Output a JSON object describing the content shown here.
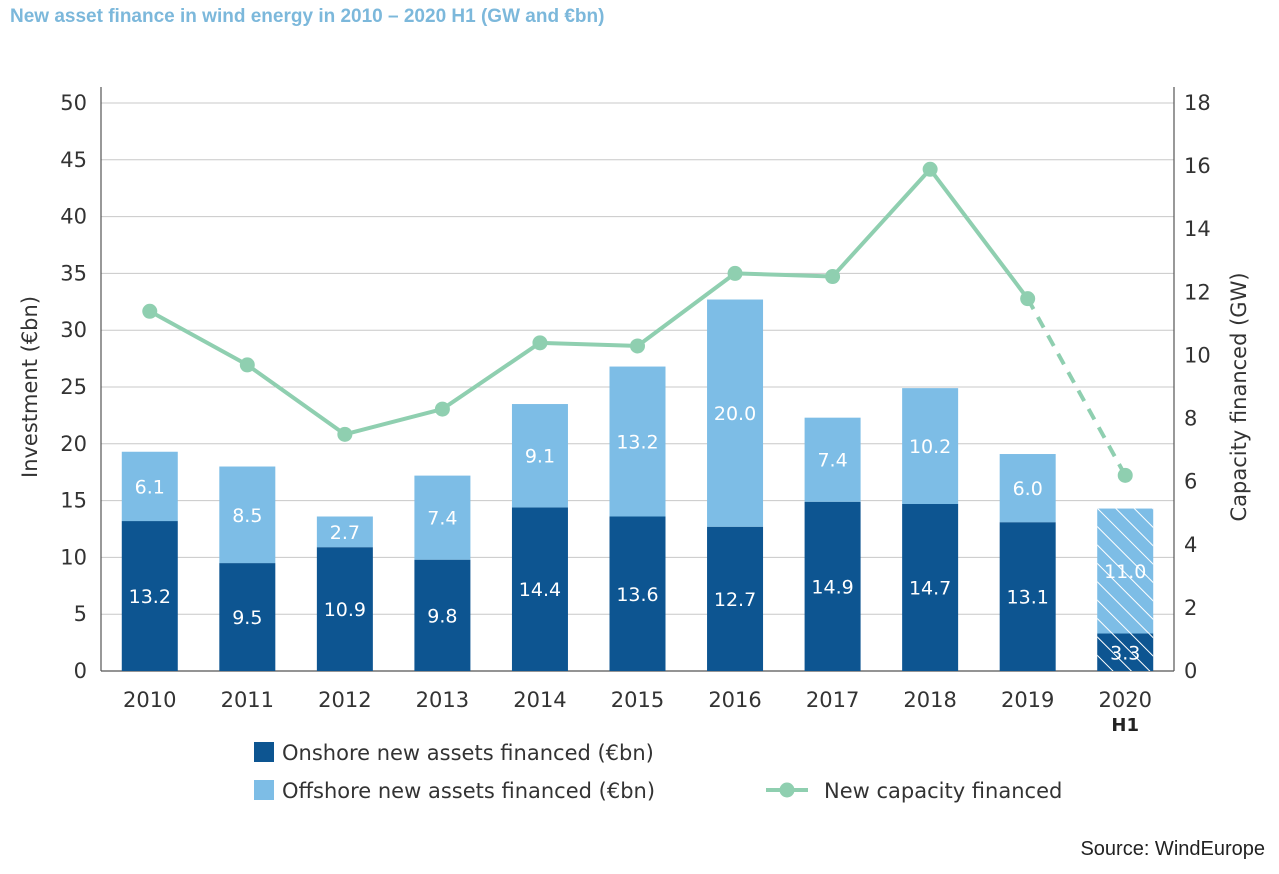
{
  "title": "New asset finance in wind energy in 2010 – 2020 H1 (GW and €bn)",
  "source": "Source: WindEurope",
  "colors": {
    "onshore": "#0d5591",
    "offshore": "#7dbde6",
    "capacity": "#8fcfb0",
    "grid": "#c8c8c8"
  },
  "chart_data": {
    "type": "bar",
    "stacked": true,
    "categories": [
      "2010",
      "2011",
      "2012",
      "2013",
      "2014",
      "2015",
      "2016",
      "2017",
      "2018",
      "2019",
      "2020"
    ],
    "category_sublabels": [
      "",
      "",
      "",
      "",
      "",
      "",
      "",
      "",
      "",
      "",
      "H1"
    ],
    "series": [
      {
        "name": "Onshore new assets financed (€bn)",
        "type": "bar",
        "axis": "left",
        "values": [
          13.2,
          9.5,
          10.9,
          9.8,
          14.4,
          13.6,
          12.7,
          14.9,
          14.7,
          13.1,
          3.3
        ],
        "labels": [
          "13.2",
          "9.5",
          "10.9",
          "9.8",
          "14.4",
          "13.6",
          "12.7",
          "14.9",
          "14.7",
          "13.1",
          "3.3"
        ]
      },
      {
        "name": "Offshore new assets financed (€bn)",
        "type": "bar",
        "axis": "left",
        "values": [
          6.1,
          8.5,
          2.7,
          7.4,
          9.1,
          13.2,
          20.0,
          7.4,
          10.2,
          6.0,
          11.0
        ],
        "labels": [
          "6.1",
          "8.5",
          "2.7",
          "7.4",
          "9.1",
          "13.2",
          "20.0",
          "7.4",
          "10.2",
          "6.0",
          "11.0"
        ]
      },
      {
        "name": "New capacity financed",
        "type": "line",
        "axis": "right",
        "values": [
          11.4,
          9.7,
          7.5,
          8.3,
          10.4,
          10.3,
          12.6,
          12.5,
          15.9,
          11.8,
          6.2
        ],
        "dashed_from_index": 9
      }
    ],
    "hatched_index": 10,
    "ylabel": "Investment (€bn)",
    "ylim": [
      0,
      50
    ],
    "yticks": [
      "0",
      "5",
      "10",
      "15",
      "20",
      "25",
      "30",
      "35",
      "40",
      "45",
      "50"
    ],
    "y2label": "Capacity financed (GW)",
    "y2lim": [
      0,
      18
    ],
    "y2ticks": [
      "0",
      "2",
      "4",
      "6",
      "8",
      "10",
      "12",
      "14",
      "16",
      "18"
    ],
    "grid": true,
    "legend_position": "bottom"
  }
}
